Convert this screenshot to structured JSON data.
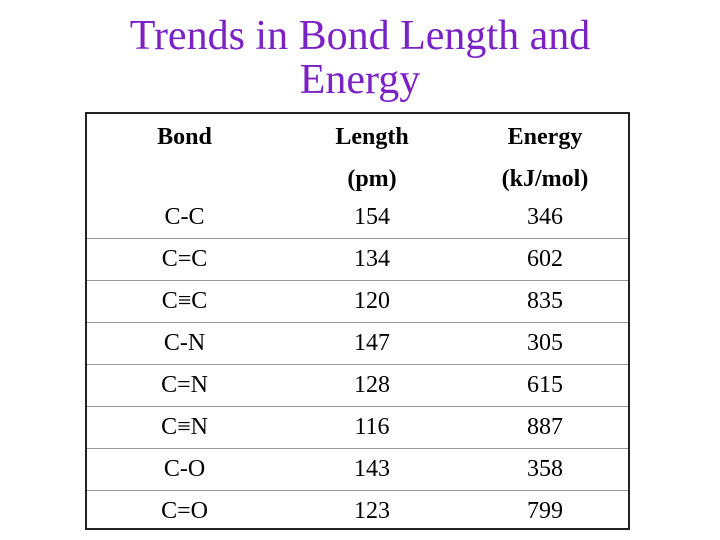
{
  "title": "Trends in Bond Length and Energy",
  "table": {
    "header": [
      [
        "Bond"
      ],
      [
        "Length",
        "(pm)"
      ],
      [
        "Energy",
        "(kJ/mol)"
      ]
    ],
    "rows": [
      [
        "C-C",
        154,
        346
      ],
      [
        "C=C",
        134,
        602
      ],
      [
        "C≡C",
        120,
        835
      ],
      [
        "C-N",
        147,
        305
      ],
      [
        "C=N",
        128,
        615
      ],
      [
        "C≡N",
        116,
        887
      ],
      [
        "C-O",
        143,
        358
      ],
      [
        "C=O",
        123,
        799
      ]
    ]
  }
}
